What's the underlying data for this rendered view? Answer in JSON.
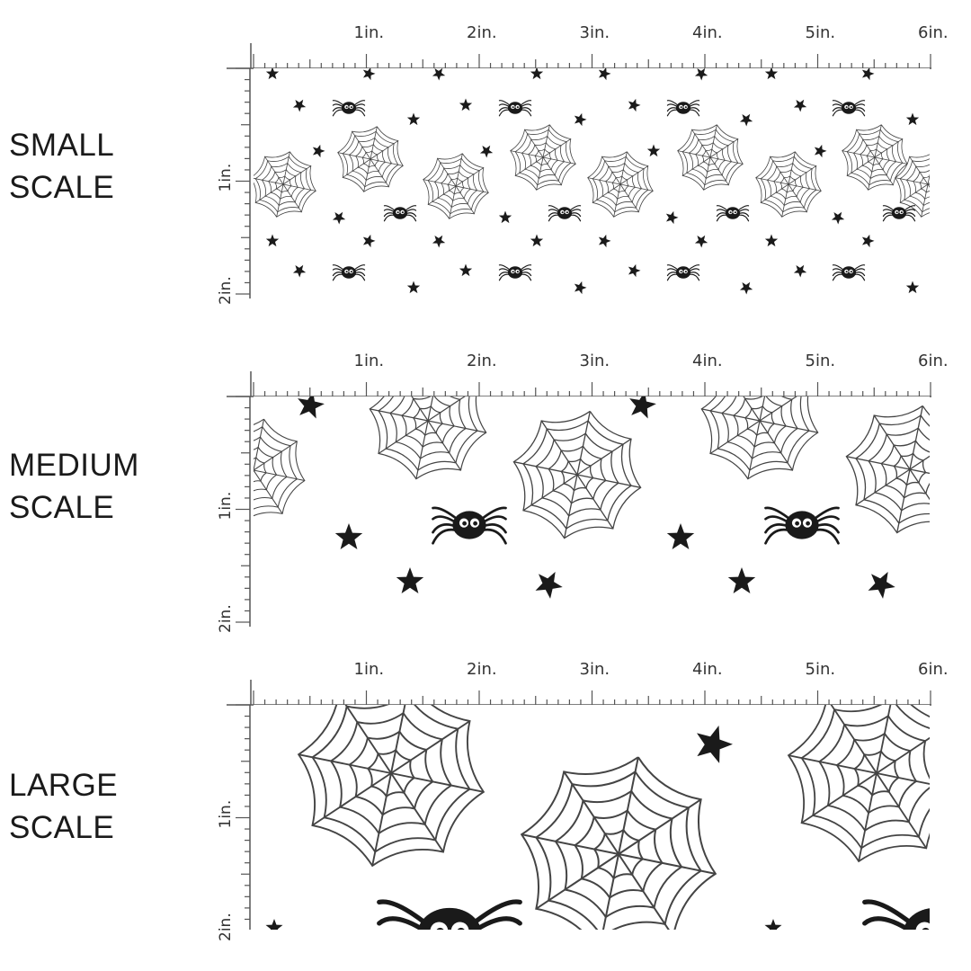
{
  "panels": [
    {
      "id": "small",
      "label_line1": "SMALL",
      "label_line2": "SCALE",
      "h_ticks": [
        "1in.",
        "2in.",
        "3in.",
        "4in.",
        "5in.",
        "6in."
      ],
      "v_ticks": [
        "1in.",
        "2in."
      ]
    },
    {
      "id": "medium",
      "label_line1": "MEDIUM",
      "label_line2": "SCALE",
      "h_ticks": [
        "1in.",
        "2in.",
        "3in.",
        "4in.",
        "5in.",
        "6in."
      ],
      "v_ticks": [
        "1in.",
        "2in."
      ]
    },
    {
      "id": "large",
      "label_line1": "LARGE",
      "label_line2": "SCALE",
      "h_ticks": [
        "1in.",
        "2in.",
        "3in.",
        "4in.",
        "5in.",
        "6in."
      ],
      "v_ticks": [
        "1in.",
        "2in."
      ]
    }
  ],
  "pattern_motifs": [
    "spiderweb-icon",
    "spider-icon",
    "star-icon"
  ],
  "colors": {
    "ink": "#1a1a1a",
    "web": "#444444",
    "background": "#ffffff"
  }
}
